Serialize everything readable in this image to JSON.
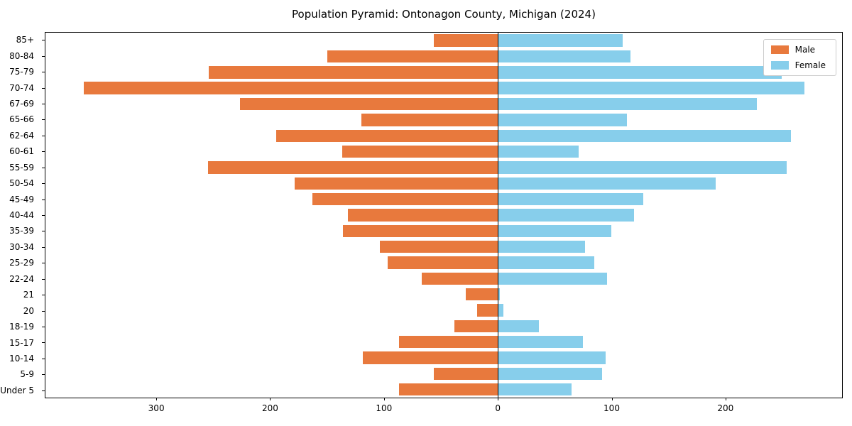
{
  "chart_data": {
    "type": "bar",
    "variant": "population-pyramid",
    "title": "Population Pyramid: Ontonagon County, Michigan (2024)",
    "categories": [
      "85+",
      "80-84",
      "75-79",
      "70-74",
      "67-69",
      "65-66",
      "62-64",
      "60-61",
      "55-59",
      "50-54",
      "45-49",
      "40-44",
      "35-39",
      "30-34",
      "25-29",
      "22-24",
      "21",
      "20",
      "18-19",
      "15-17",
      "10-14",
      "5-9",
      "Under 5"
    ],
    "series": [
      {
        "name": "Male",
        "side": "left",
        "color": "#E8793D",
        "values": [
          56,
          150,
          254,
          364,
          227,
          120,
          195,
          137,
          255,
          179,
          163,
          132,
          136,
          104,
          97,
          67,
          28,
          18,
          38,
          87,
          119,
          56,
          87
        ]
      },
      {
        "name": "Female",
        "side": "right",
        "color": "#87CEEB",
        "values": [
          110,
          117,
          250,
          270,
          228,
          114,
          258,
          71,
          254,
          192,
          128,
          120,
          100,
          77,
          85,
          96,
          2,
          5,
          36,
          75,
          95,
          92,
          65
        ]
      }
    ],
    "xlim": [
      -398,
      303
    ],
    "x_ticks": [
      {
        "value": -300,
        "label": "300"
      },
      {
        "value": -200,
        "label": "200"
      },
      {
        "value": -100,
        "label": "100"
      },
      {
        "value": 0,
        "label": "0"
      },
      {
        "value": 100,
        "label": "100"
      },
      {
        "value": 200,
        "label": "200"
      }
    ],
    "legend_position": "upper right",
    "grid": false,
    "zero_line": true
  }
}
